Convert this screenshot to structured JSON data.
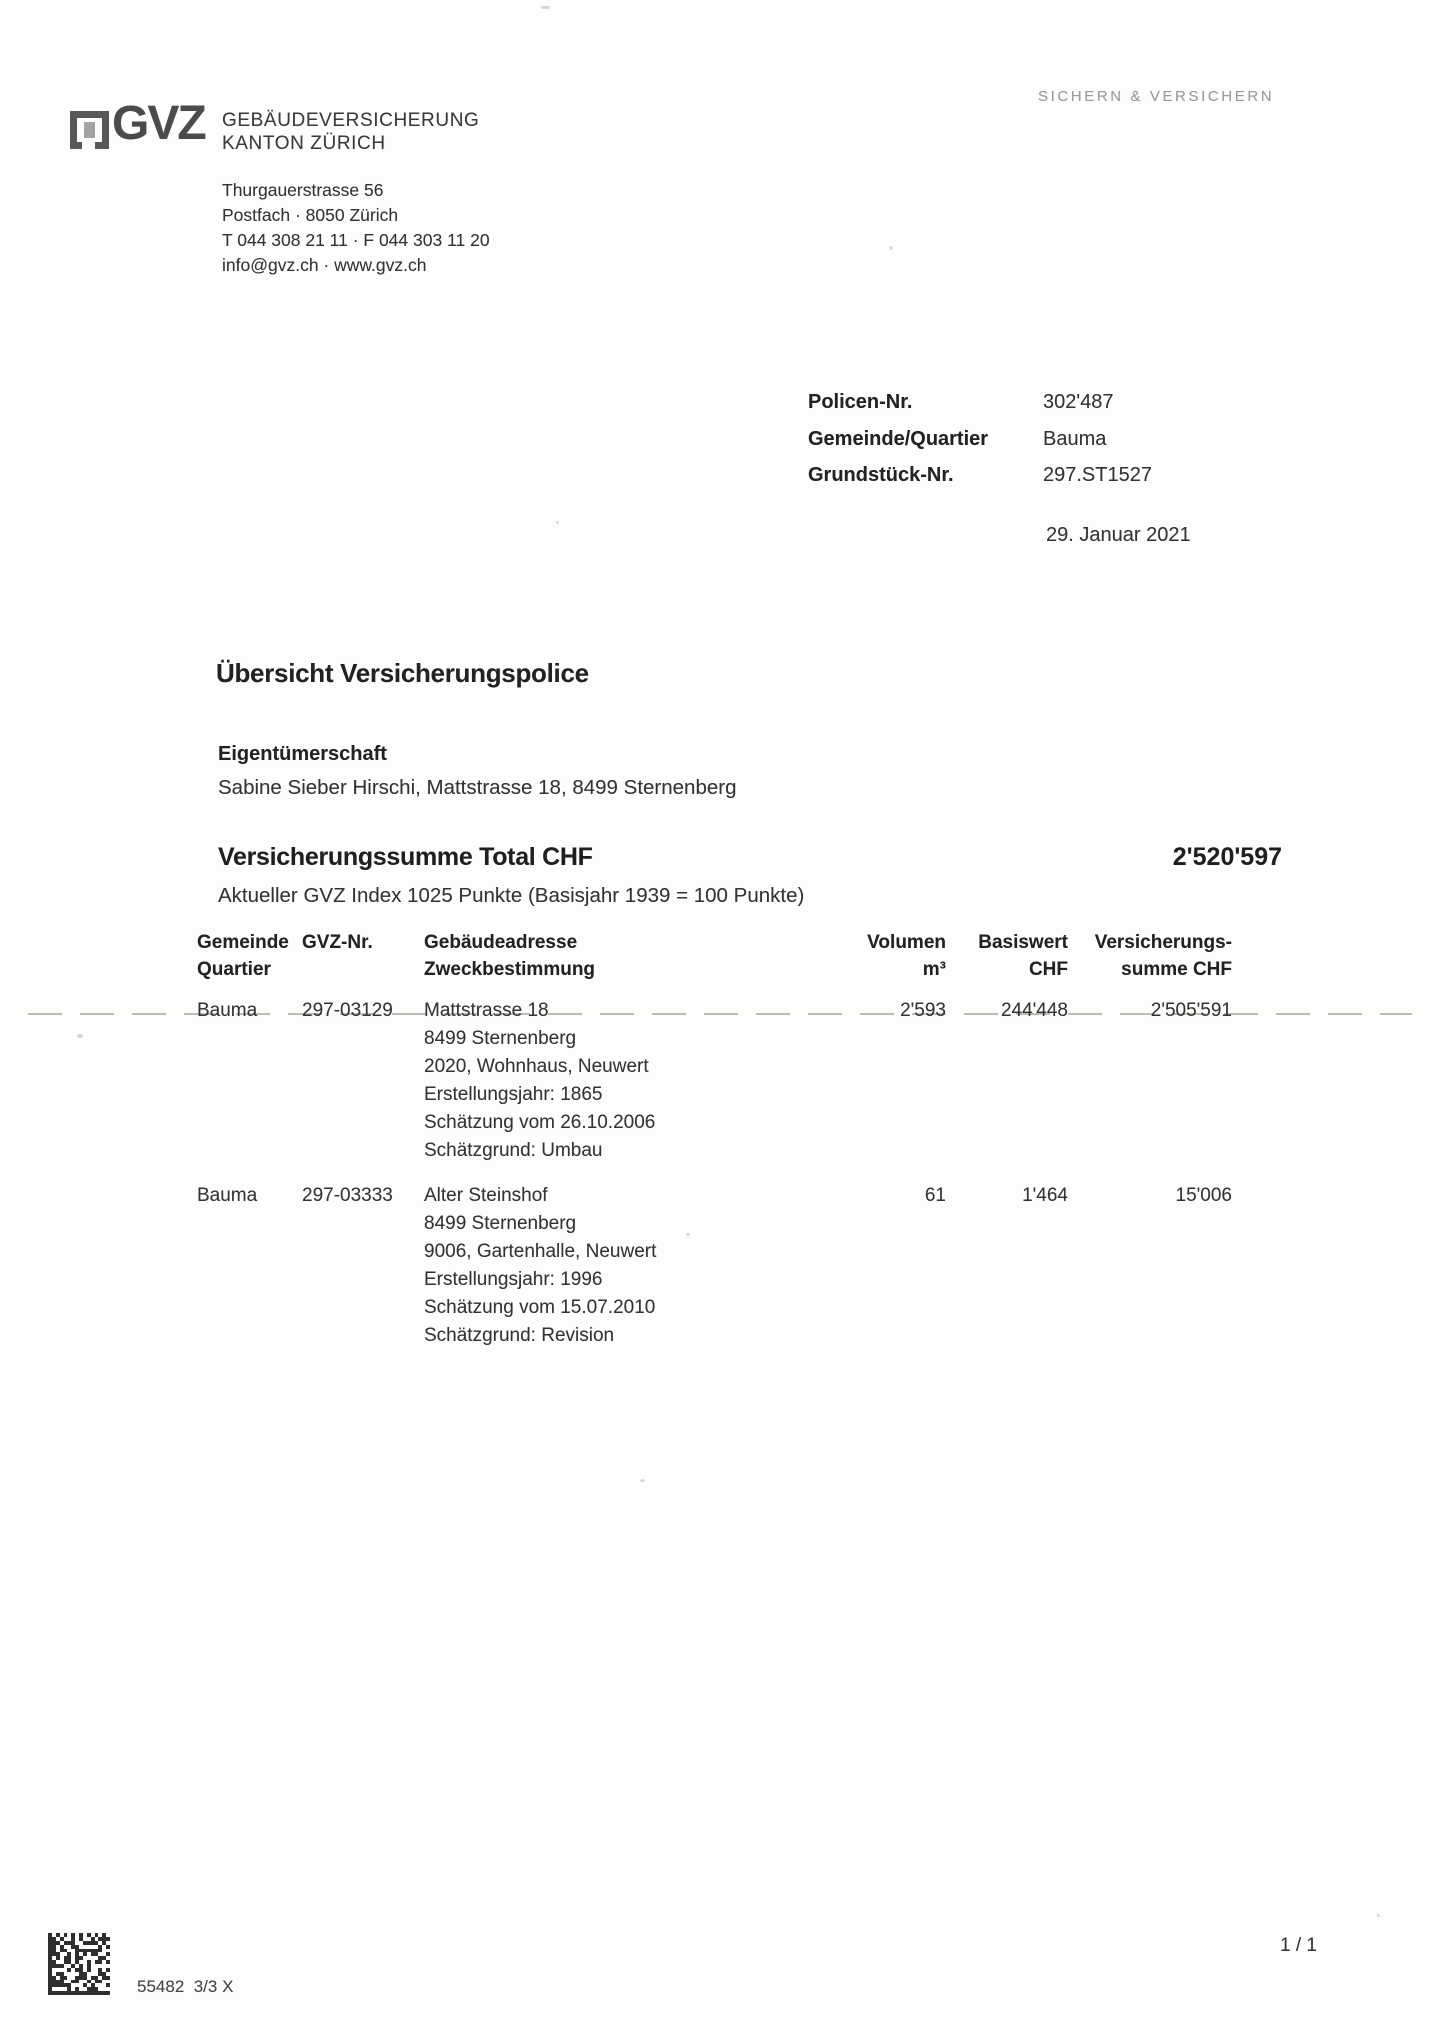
{
  "colors": {
    "text_dark": "#2d2d2d",
    "tagline_gray": "#9a9da0",
    "fold_line_gray": "#aaa7a1"
  },
  "header": {
    "logo_text": "GVZ",
    "company_line1": "GEBÄUDEVERSICHERUNG",
    "company_line2": "KANTON ZÜRICH",
    "tagline": "SICHERN & VERSICHERN",
    "address_lines": [
      "Thurgauerstrasse 56",
      "Postfach · 8050 Zürich",
      "T 044 308 21 11 · F 044 303 11 20",
      "info@gvz.ch · www.gvz.ch"
    ]
  },
  "policy": {
    "rows": [
      {
        "label": "Policen-Nr.",
        "value": "302'487"
      },
      {
        "label": "Gemeinde/Quartier",
        "value": "Bauma"
      },
      {
        "label": "Grundstück-Nr.",
        "value": "297.ST1527"
      }
    ],
    "date": "29. Januar 2021"
  },
  "title": "Übersicht Versicherungspolice",
  "owner": {
    "heading": "Eigentümerschaft",
    "name_address": "Sabine Sieber Hirschi, Mattstrasse 18, 8499 Sternenberg"
  },
  "sum": {
    "label": "Versicherungssumme Total CHF",
    "total": "2'520'597",
    "index_note": "Aktueller GVZ Index 1025 Punkte (Basisjahr 1939 = 100 Punkte)"
  },
  "table": {
    "headers": {
      "col1_line1": "Gemeinde",
      "col1_line2": "Quartier",
      "col2": "GVZ-Nr.",
      "col3_line1": "Gebäudeadresse",
      "col3_line2": "Zweckbestimmung",
      "col4_line1": "Volumen",
      "col4_line2": "m³",
      "col5_line1": "Basiswert",
      "col5_line2": "CHF",
      "col6_line1": "Versicherungs-",
      "col6_line2": "summe CHF"
    },
    "rows": [
      {
        "gemeinde": "Bauma",
        "gvz_nr": "297-03129",
        "address_lines": [
          "Mattstrasse 18",
          "8499 Sternenberg",
          "2020, Wohnhaus, Neuwert",
          "Erstellungsjahr: 1865",
          "Schätzung vom 26.10.2006",
          "Schätzgrund: Umbau"
        ],
        "volumen": "2'593",
        "basiswert": "244'448",
        "versicherungssumme": "2'505'591"
      },
      {
        "gemeinde": "Bauma",
        "gvz_nr": "297-03333",
        "address_lines": [
          "Alter Steinshof",
          "8499 Sternenberg",
          "9006, Gartenhalle, Neuwert",
          "Erstellungsjahr: 1996",
          "Schätzung vom 15.07.2010",
          "Schätzgrund: Revision"
        ],
        "volumen": "61",
        "basiswert": "1'464",
        "versicherungssumme": "15'006"
      }
    ]
  },
  "footer": {
    "doc_code": "55482  3/3 X",
    "page_number": "1 / 1"
  }
}
